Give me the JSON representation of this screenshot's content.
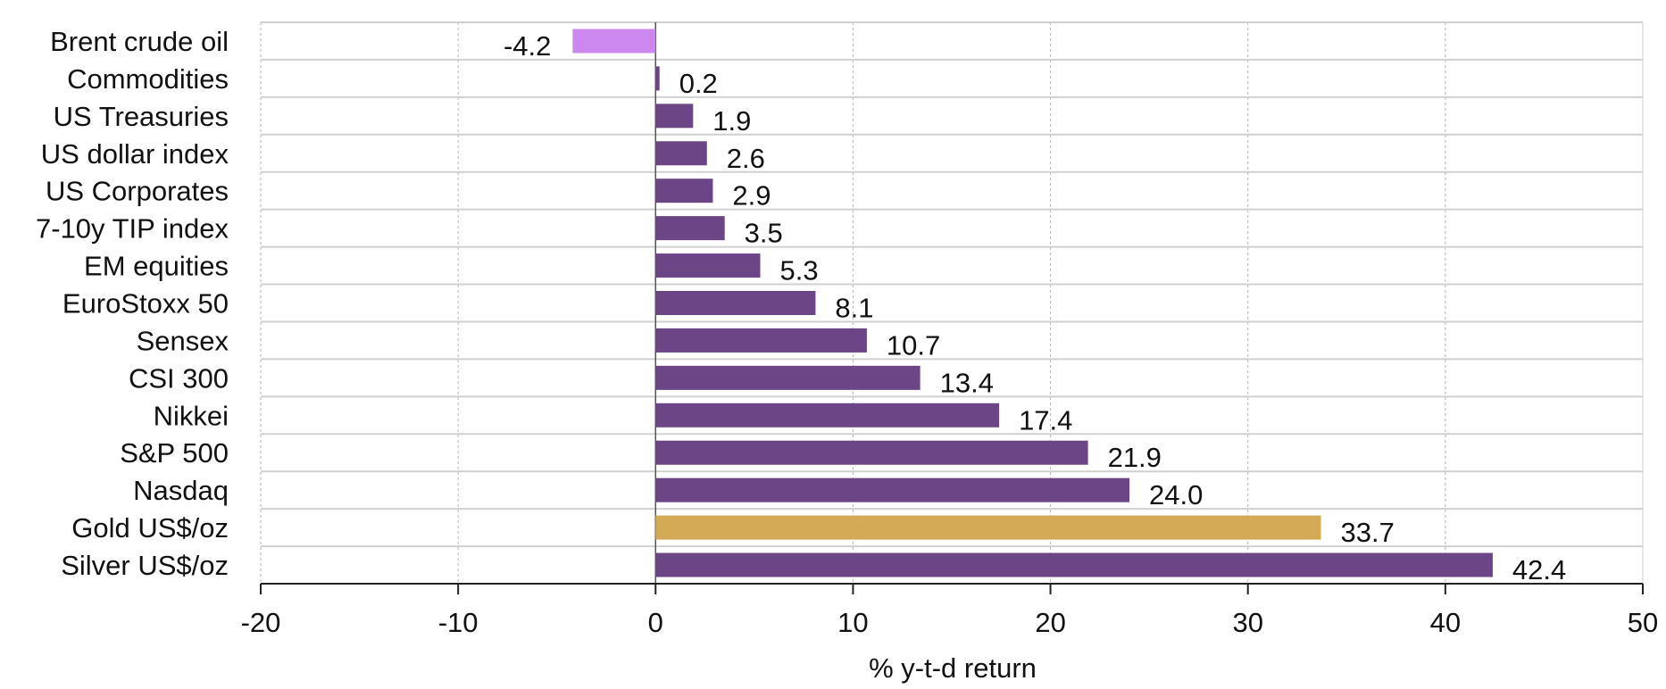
{
  "chart_data": {
    "type": "bar",
    "orientation": "horizontal",
    "categories": [
      "Brent crude oil",
      "Commodities",
      "US Treasuries",
      "US dollar index",
      "US Corporates",
      "7-10y TIP index",
      "EM equities",
      "EuroStoxx 50",
      "Sensex",
      "CSI 300",
      "Nikkei",
      "S&P 500",
      "Nasdaq",
      "Gold US$/oz",
      "Silver US$/oz"
    ],
    "values": [
      -4.2,
      0.2,
      1.9,
      2.6,
      2.9,
      3.5,
      5.3,
      8.1,
      10.7,
      13.4,
      17.4,
      21.9,
      24.0,
      33.7,
      42.4
    ],
    "value_labels": [
      "-4.2",
      "0.2",
      "1.9",
      "2.6",
      "2.9",
      "3.5",
      "5.3",
      "8.1",
      "10.7",
      "13.4",
      "17.4",
      "21.9",
      "24.0",
      "33.7",
      "42.4"
    ],
    "bar_colors": [
      "#cc88ee",
      "#6b4585",
      "#6b4585",
      "#6b4585",
      "#6b4585",
      "#6b4585",
      "#6b4585",
      "#6b4585",
      "#6b4585",
      "#6b4585",
      "#6b4585",
      "#6b4585",
      "#6b4585",
      "#d4aa57",
      "#6b4585"
    ],
    "title": "",
    "xlabel": "% y-t-d return",
    "ylabel": "",
    "xlim": [
      -20,
      50
    ],
    "xticks": [
      -20,
      -10,
      0,
      10,
      20,
      30,
      40,
      50
    ],
    "xtick_labels": [
      "-20",
      "-10",
      "0",
      "10",
      "20",
      "30",
      "40",
      "50"
    ],
    "grid": true,
    "legend": "none"
  }
}
